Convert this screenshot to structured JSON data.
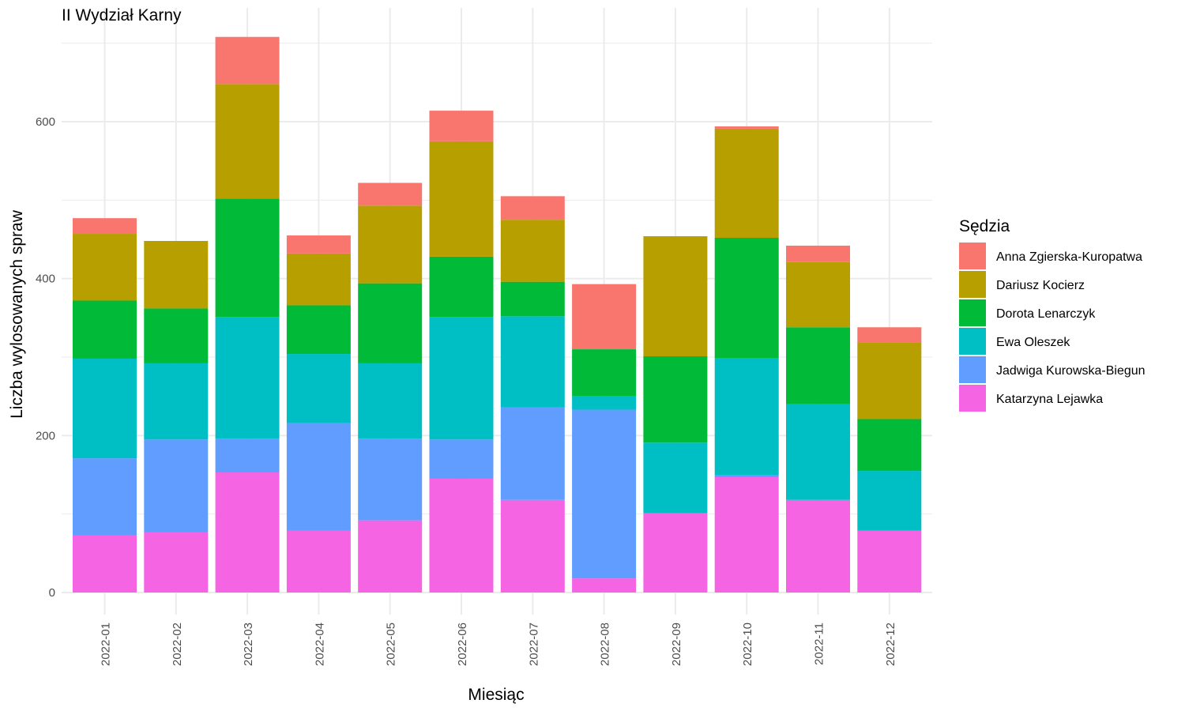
{
  "chart_data": {
    "type": "bar",
    "stacked": true,
    "title": "II Wydział Karny",
    "xlabel": "Miesiąc",
    "ylabel": "Liczba wylosowanych spraw",
    "ylim": [
      0,
      710
    ],
    "y_ticks": [
      0,
      200,
      400,
      600
    ],
    "grid": true,
    "legend_title": "Sędzia",
    "legend_position": "right",
    "categories": [
      "2022-01",
      "2022-02",
      "2022-03",
      "2022-04",
      "2022-05",
      "2022-06",
      "2022-07",
      "2022-08",
      "2022-09",
      "2022-10",
      "2022-11",
      "2022-12"
    ],
    "series": [
      {
        "name": "Katarzyna Lejawka",
        "color": "#F564E3",
        "values": [
          73,
          77,
          153,
          79,
          92,
          145,
          118,
          18,
          101,
          147,
          118,
          79
        ]
      },
      {
        "name": "Jadwiga Kurowska-Biegun",
        "color": "#619CFF",
        "values": [
          98,
          118,
          43,
          137,
          104,
          50,
          118,
          215,
          0,
          3,
          0,
          0
        ]
      },
      {
        "name": "Ewa Oleszek",
        "color": "#00BFC4",
        "values": [
          127,
          97,
          155,
          88,
          96,
          156,
          116,
          17,
          90,
          149,
          122,
          76
        ]
      },
      {
        "name": "Dorota Lenarczyk",
        "color": "#00BA38",
        "values": [
          74,
          70,
          151,
          62,
          102,
          77,
          44,
          60,
          110,
          153,
          98,
          66
        ]
      },
      {
        "name": "Dariusz Kocierz",
        "color": "#B79F00",
        "values": [
          85,
          86,
          146,
          66,
          99,
          147,
          79,
          0,
          153,
          139,
          83,
          98
        ]
      },
      {
        "name": "Anna Zgierska-Kuropatwa",
        "color": "#F8766D",
        "values": [
          20,
          0,
          60,
          23,
          29,
          39,
          30,
          83,
          0,
          3,
          21,
          19
        ]
      }
    ],
    "legend_order": [
      "Anna Zgierska-Kuropatwa",
      "Dariusz Kocierz",
      "Dorota Lenarczyk",
      "Ewa Oleszek",
      "Jadwiga Kurowska-Biegun",
      "Katarzyna Lejawka"
    ]
  }
}
